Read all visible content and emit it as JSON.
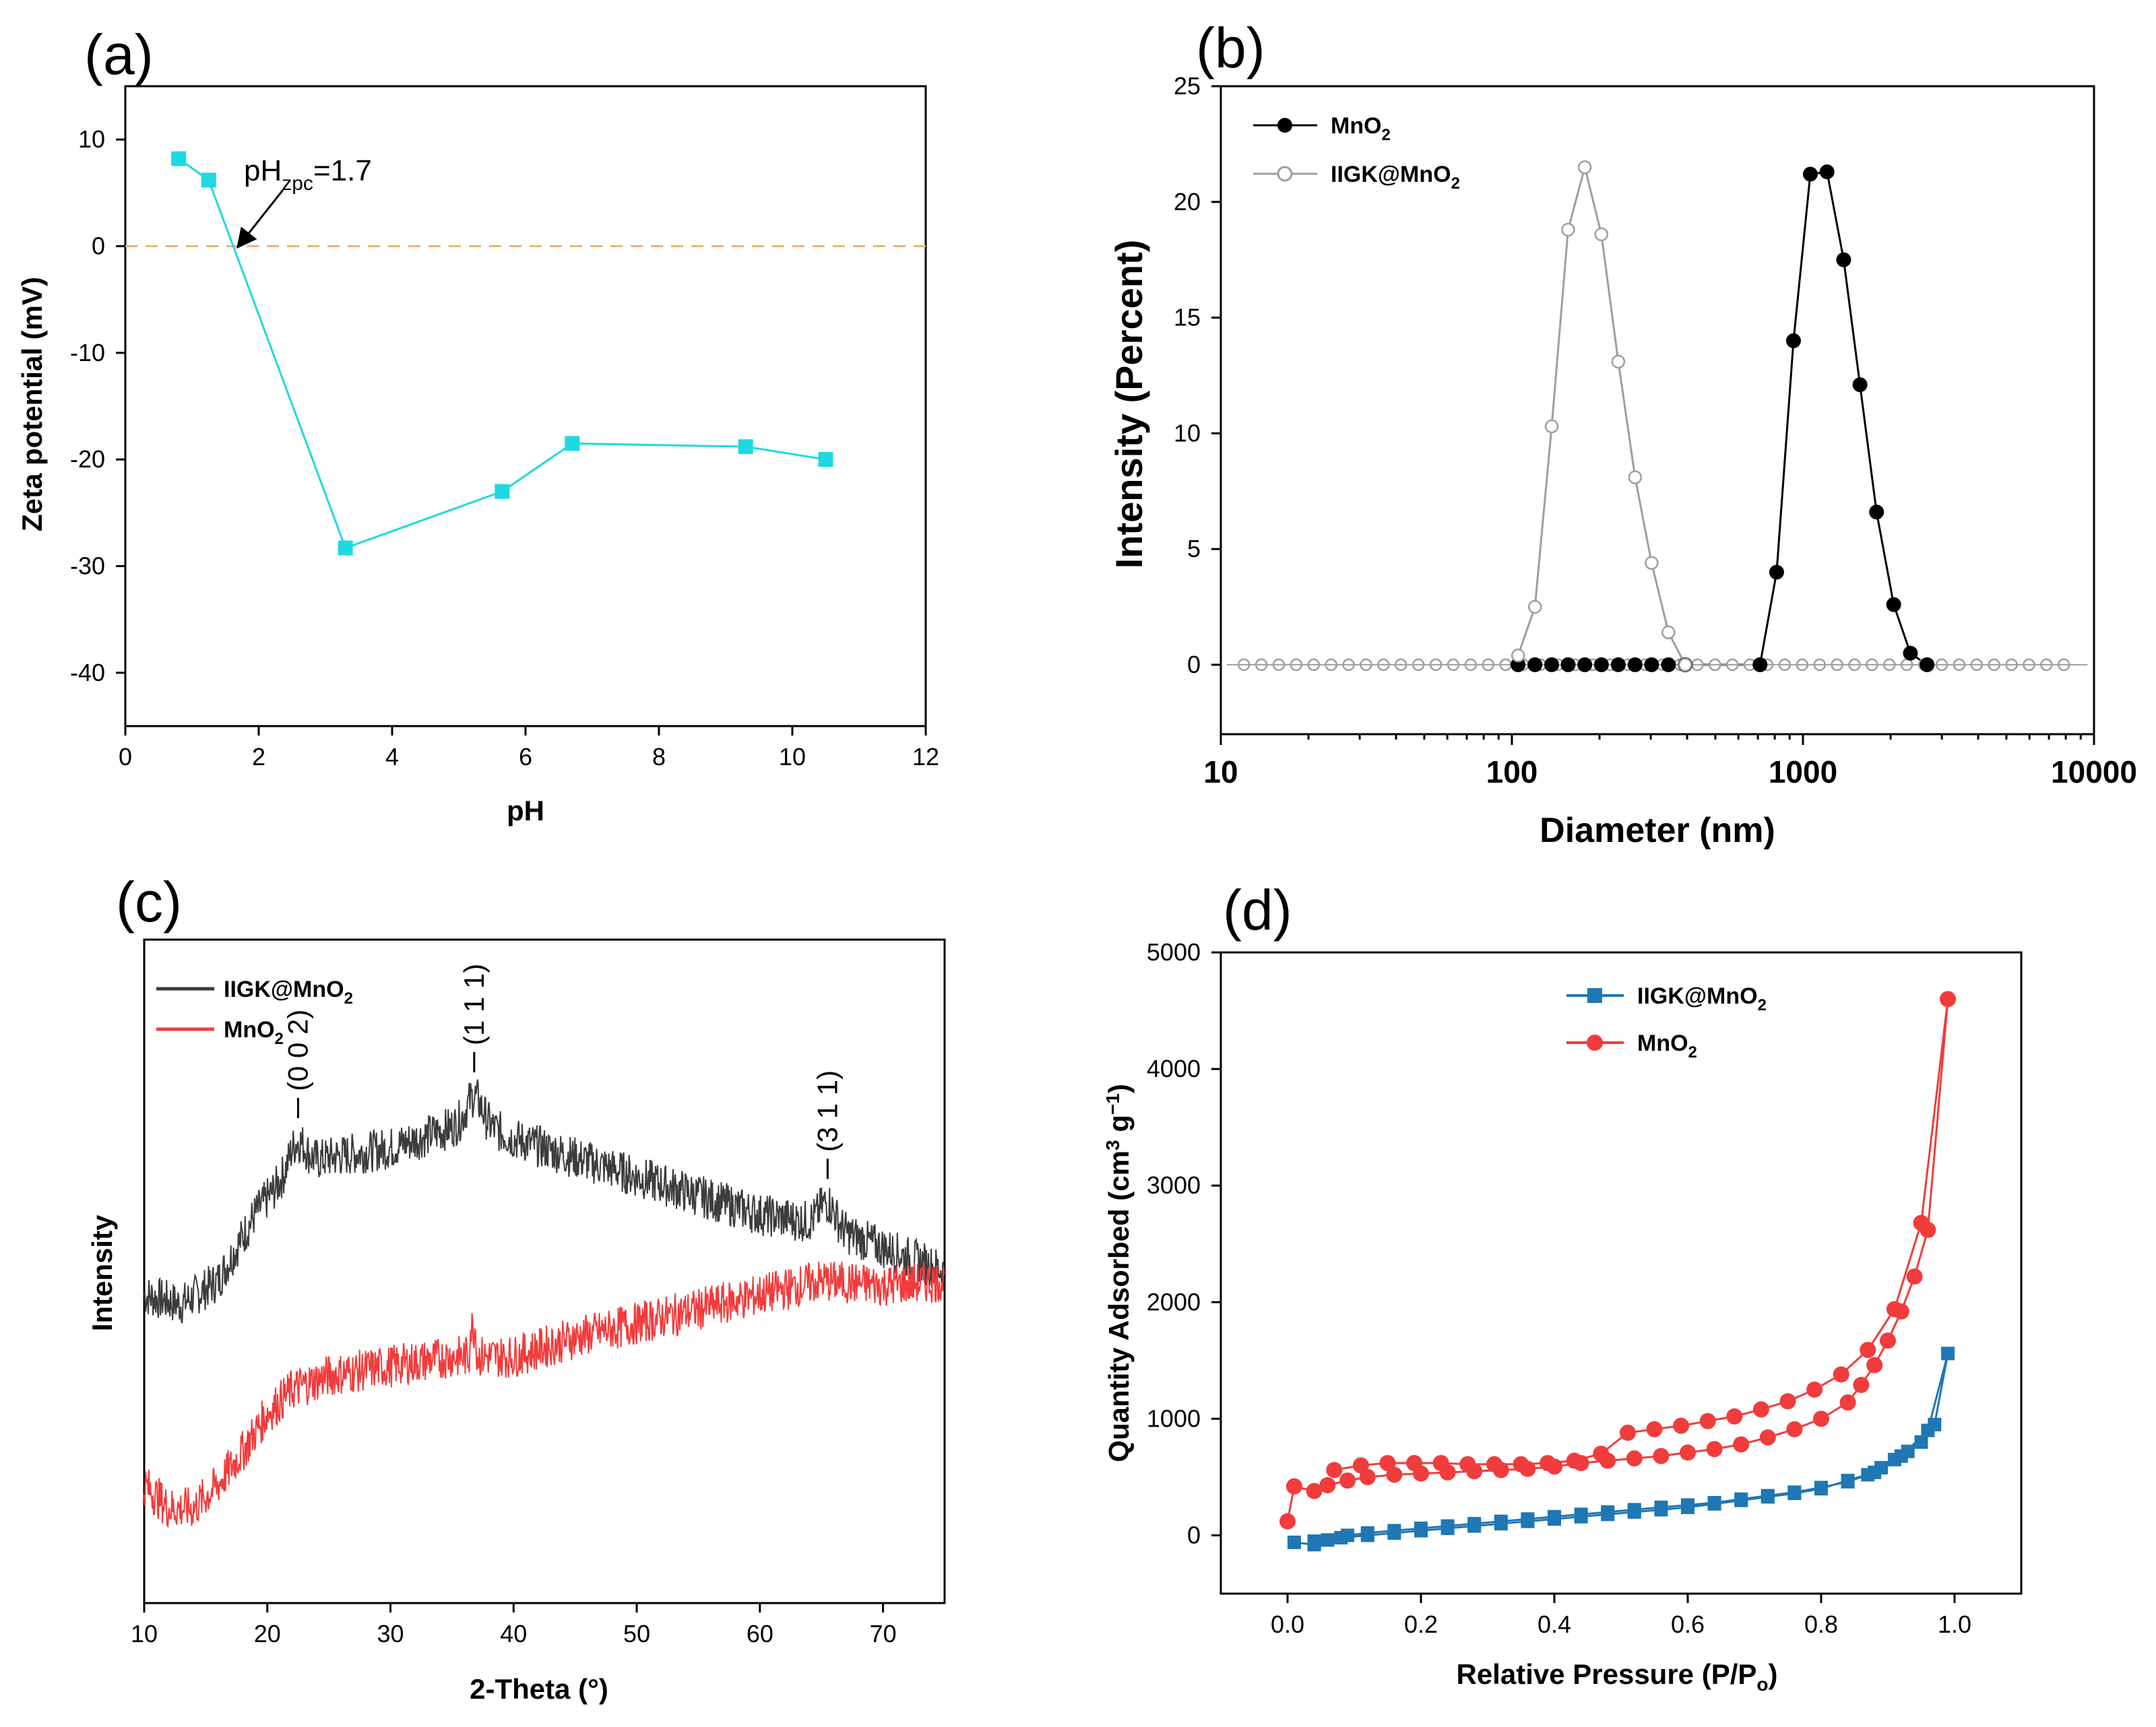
{
  "panels": {
    "a": {
      "label": "(a)"
    },
    "b": {
      "label": "(b)"
    },
    "c": {
      "label": "(c)"
    },
    "d": {
      "label": "(d)"
    }
  },
  "colors": {
    "cyan": "#1fd9e0",
    "orange_dash": "#f5b36b",
    "black": "#000000",
    "gray": "#9e9e9e",
    "dark_gray": "#3c3c3c",
    "red": "#f03c3c",
    "blue": "#1f77b4"
  },
  "chart_data": [
    {
      "id": "a",
      "type": "line",
      "title": "",
      "xlabel": "pH",
      "ylabel": "Zeta potential (mV)",
      "xlim": [
        0,
        12
      ],
      "ylim": [
        -45,
        15
      ],
      "xticks": [
        0,
        2,
        4,
        6,
        8,
        10,
        12
      ],
      "yticks": [
        10,
        0,
        -10,
        -20,
        -30,
        -40
      ],
      "series": [
        {
          "name": "zeta",
          "x": [
            0.8,
            1.25,
            3.3,
            5.65,
            6.7,
            9.3,
            10.5
          ],
          "y": [
            8.2,
            6.2,
            -28.3,
            -23.0,
            -18.5,
            -18.8,
            -20.0
          ]
        }
      ],
      "reference_line": {
        "y": 0
      },
      "annotation": {
        "text_main": "pH",
        "text_sub": "zpc",
        "text_tail": "=1.7",
        "point": [
          1.7,
          0
        ]
      }
    },
    {
      "id": "b",
      "type": "line",
      "xlabel": "Diameter (nm)",
      "ylabel": "Intensity (Percent)",
      "xscale": "log",
      "xlim": [
        10,
        10000
      ],
      "ylim": [
        -3,
        25
      ],
      "xticks": [
        "10",
        "100",
        "1000",
        "10000"
      ],
      "yticks": [
        0,
        5,
        10,
        15,
        20,
        25
      ],
      "legend": [
        "MnO2",
        "IIGK@MnO2"
      ],
      "legend_labels": [
        {
          "main": "MnO",
          "sub": "2",
          "tail": ""
        },
        {
          "main": "IIGK@MnO",
          "sub": "2",
          "tail": ""
        }
      ],
      "series": [
        {
          "name": "MnO2",
          "x": [
            105,
            120,
            137,
            156,
            178,
            203,
            232,
            265,
            302,
            345,
            394,
            712,
            812,
            928,
            1060,
            1210,
            1380,
            1570,
            1790,
            2050,
            2340,
            2670
          ],
          "y": [
            0,
            0,
            0,
            0,
            0,
            0,
            0,
            0,
            0,
            0,
            0,
            0,
            4.0,
            14.0,
            21.2,
            21.3,
            17.5,
            12.1,
            6.6,
            2.6,
            0.5,
            0
          ]
        },
        {
          "name": "IIGK@MnO2",
          "x": [
            105,
            120,
            137,
            156,
            178,
            203,
            232,
            265,
            302,
            345,
            394
          ],
          "y": [
            0.4,
            2.5,
            10.3,
            18.8,
            21.5,
            18.6,
            13.1,
            8.1,
            4.4,
            1.4,
            0
          ]
        }
      ]
    },
    {
      "id": "c",
      "type": "line",
      "xlabel": "2-Theta (°)",
      "ylabel": "Intensity",
      "xlim": [
        10,
        75
      ],
      "xticks": [
        10,
        20,
        30,
        40,
        50,
        60,
        70
      ],
      "legend": [
        "IIGK@MnO2",
        "MnO2"
      ],
      "legend_labels": [
        {
          "main": "IIGK@MnO",
          "sub": "2",
          "tail": ""
        },
        {
          "main": "MnO",
          "sub": "2",
          "tail": ""
        }
      ],
      "peaks": [
        {
          "label": "(0 0 2)",
          "x": 22.5
        },
        {
          "label": "(1 1 1)",
          "x": 36.8
        },
        {
          "label": "(3 1 1)",
          "x": 65.5
        }
      ],
      "series": [
        {
          "name": "IIGK@MnO2",
          "x": [
            10,
            13,
            16,
            19,
            22,
            25,
            30,
            36.8,
            40,
            45,
            50,
            55,
            60,
            65,
            70,
            75
          ],
          "y": [
            0.35,
            0.33,
            0.38,
            0.52,
            0.62,
            0.64,
            0.66,
            0.72,
            0.68,
            0.64,
            0.6,
            0.56,
            0.52,
            0.5,
            0.45,
            0.4
          ]
        },
        {
          "name": "MnO2",
          "x": [
            10,
            12,
            14,
            16,
            18,
            20,
            22,
            25,
            30,
            35,
            40,
            45,
            50,
            55,
            60,
            65,
            70,
            75
          ],
          "y": [
            -0.05,
            -0.1,
            -0.1,
            -0.05,
            0.02,
            0.1,
            0.15,
            0.18,
            0.2,
            0.22,
            0.22,
            0.26,
            0.29,
            0.32,
            0.35,
            0.38,
            0.37,
            0.38
          ]
        }
      ]
    },
    {
      "id": "d",
      "type": "line",
      "xlabel": "Relative Pressure (P/P0)",
      "xlabel_parts": {
        "main": "Relative Pressure (P/P",
        "sub": "o",
        "tail": ")"
      },
      "ylabel": "Quantity Adsorbed (cm3 g-1)",
      "ylabel_parts": {
        "main": "Quantity Adsorbed (cm",
        "sup1": "3",
        "mid": " g",
        "sup2": "−1",
        "tail": ")"
      },
      "xlim": [
        -0.1,
        1.1
      ],
      "ylim": [
        -500,
        5000
      ],
      "xticks": [
        "0.0",
        "0.2",
        "0.4",
        "0.6",
        "0.8",
        "1.0"
      ],
      "yticks": [
        0,
        1000,
        2000,
        3000,
        4000,
        5000
      ],
      "legend": [
        "IIGK@MnO2",
        "MnO2"
      ],
      "legend_labels": [
        {
          "main": "IIGK@MnO",
          "sub": "2",
          "tail": ""
        },
        {
          "main": "MnO",
          "sub": "2",
          "tail": ""
        }
      ],
      "series": [
        {
          "name": "IIGK@MnO2",
          "x": [
            0.01,
            0.04,
            0.06,
            0.09,
            0.12,
            0.16,
            0.2,
            0.24,
            0.28,
            0.32,
            0.36,
            0.4,
            0.44,
            0.48,
            0.52,
            0.56,
            0.6,
            0.64,
            0.68,
            0.72,
            0.76,
            0.8,
            0.84,
            0.87,
            0.89,
            0.91,
            0.93,
            0.95,
            0.97,
            0.99,
            0.96,
            0.92,
            0.88,
            0.84,
            0.8,
            0.76,
            0.72,
            0.68,
            0.64,
            0.6,
            0.56,
            0.52,
            0.48,
            0.44,
            0.4,
            0.36,
            0.32,
            0.28,
            0.24,
            0.2,
            0.16,
            0.12,
            0.08,
            0.04
          ],
          "y": [
            -60,
            -80,
            -40,
            0,
            20,
            40,
            60,
            80,
            100,
            120,
            140,
            160,
            180,
            200,
            220,
            240,
            260,
            280,
            310,
            340,
            370,
            410,
            460,
            520,
            580,
            650,
            720,
            800,
            950,
            1560,
            900,
            680,
            540,
            470,
            400,
            360,
            330,
            300,
            270,
            240,
            220,
            200,
            180,
            160,
            140,
            120,
            100,
            80,
            60,
            40,
            20,
            0,
            -20,
            -50
          ]
        },
        {
          "name": "MnO2",
          "x": [
            0.0,
            0.01,
            0.04,
            0.06,
            0.09,
            0.12,
            0.16,
            0.2,
            0.24,
            0.28,
            0.32,
            0.36,
            0.4,
            0.44,
            0.48,
            0.52,
            0.56,
            0.6,
            0.64,
            0.68,
            0.72,
            0.76,
            0.8,
            0.84,
            0.86,
            0.88,
            0.9,
            0.92,
            0.94,
            0.96,
            0.99,
            0.95,
            0.91,
            0.87,
            0.83,
            0.79,
            0.75,
            0.71,
            0.67,
            0.63,
            0.59,
            0.55,
            0.51,
            0.47,
            0.43,
            0.39,
            0.35,
            0.31,
            0.27,
            0.23,
            0.19,
            0.15,
            0.11,
            0.07
          ],
          "y": [
            120,
            420,
            380,
            430,
            470,
            500,
            520,
            530,
            540,
            550,
            560,
            570,
            590,
            620,
            640,
            660,
            680,
            710,
            740,
            780,
            840,
            910,
            1000,
            1140,
            1290,
            1460,
            1670,
            1920,
            2220,
            2620,
            4600,
            2680,
            1940,
            1590,
            1380,
            1250,
            1150,
            1080,
            1020,
            980,
            940,
            910,
            880,
            700,
            640,
            620,
            610,
            610,
            610,
            620,
            620,
            620,
            600,
            560
          ]
        }
      ]
    }
  ]
}
